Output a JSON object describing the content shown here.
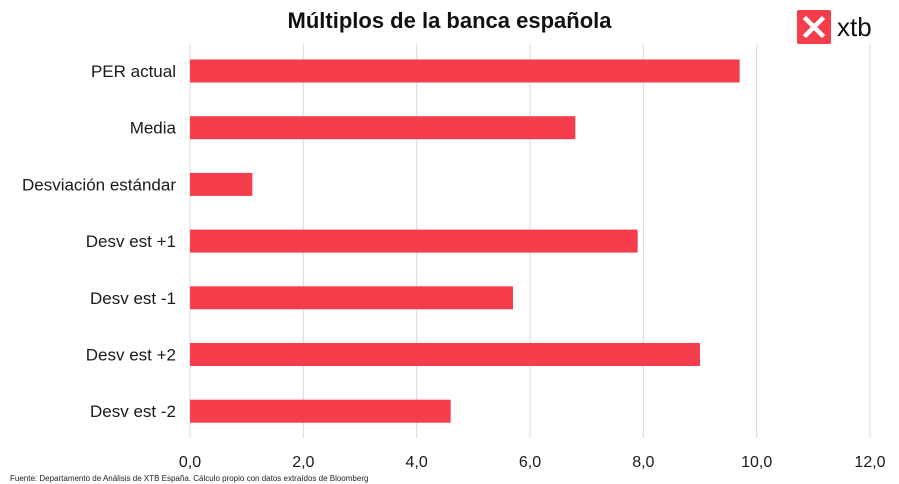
{
  "brand": {
    "name": "xtb",
    "color": "#f63d4b"
  },
  "source_note": "Fuente: Departamento de Análisis de XTB España. Cálculo propio con datos extraídos de Bloomberg",
  "chart_data": {
    "type": "bar",
    "orientation": "horizontal",
    "title": "Múltiplos de la banca española",
    "categories": [
      "PER actual",
      "Media",
      "Desviación estándar",
      "Desv est +1",
      "Desv est -1",
      "Desv est +2",
      "Desv est -2"
    ],
    "values": [
      9.7,
      6.8,
      1.1,
      7.9,
      5.7,
      9.0,
      4.6
    ],
    "xlim": [
      0,
      12
    ],
    "xticks": [
      "0,0",
      "2,0",
      "4,0",
      "6,0",
      "8,0",
      "10,0",
      "12,0"
    ],
    "xtick_values": [
      0,
      2,
      4,
      6,
      8,
      10,
      12
    ],
    "grid": "vertical",
    "legend": "none",
    "bar_color": "#f63d4b"
  }
}
